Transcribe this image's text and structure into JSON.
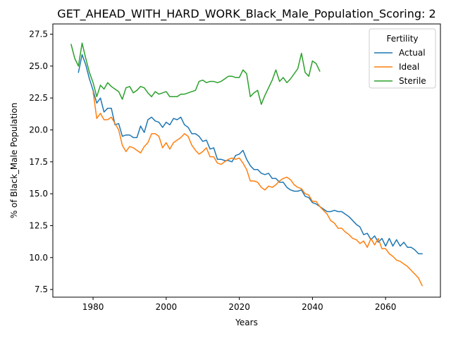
{
  "chart_data": {
    "type": "line",
    "title": "GET_AHEAD_WITH_HARD_WORK_Black_Male_Population_Scoring: 2",
    "xlabel": "Years",
    "ylabel": "% of Black_Male Population",
    "xlim": [
      1969,
      2075
    ],
    "ylim": [
      6.9,
      28.3
    ],
    "x_ticks": [
      1980,
      2000,
      2020,
      2040,
      2060
    ],
    "y_ticks": [
      7.5,
      10.0,
      12.5,
      15.0,
      17.5,
      20.0,
      22.5,
      25.0,
      27.5
    ],
    "legend": {
      "title": "Fertility",
      "position": "top-right"
    },
    "series": [
      {
        "name": "Actual",
        "color": "#1f77b4",
        "x": [
          1976,
          1977,
          1978,
          1979,
          1980,
          1981,
          1982,
          1983,
          1984,
          1985,
          1986,
          1987,
          1988,
          1989,
          1990,
          1991,
          1992,
          1993,
          1994,
          1995,
          1996,
          1997,
          1998,
          1999,
          2000,
          2001,
          2002,
          2003,
          2004,
          2005,
          2006,
          2007,
          2008,
          2009,
          2010,
          2011,
          2012,
          2013,
          2014,
          2015,
          2016,
          2017,
          2018,
          2019,
          2020,
          2021,
          2022,
          2023,
          2024,
          2025,
          2026,
          2027,
          2028,
          2029,
          2030,
          2031,
          2032,
          2033,
          2034,
          2035,
          2036,
          2037,
          2038,
          2039,
          2040,
          2041,
          2042,
          2043,
          2044,
          2045,
          2046,
          2047,
          2048,
          2049,
          2050,
          2051,
          2052,
          2053,
          2054,
          2055,
          2056,
          2057,
          2058,
          2059,
          2060,
          2061,
          2062,
          2063,
          2064,
          2065,
          2066,
          2067,
          2068,
          2069,
          2070
        ],
        "values": [
          24.5,
          25.9,
          25.1,
          24.0,
          23.1,
          22.1,
          22.5,
          21.4,
          21.7,
          21.7,
          20.4,
          20.5,
          19.5,
          19.6,
          19.6,
          19.4,
          19.4,
          20.3,
          19.8,
          20.8,
          21.0,
          20.7,
          20.6,
          20.2,
          20.6,
          20.4,
          20.9,
          20.8,
          21.0,
          20.4,
          20.2,
          19.7,
          19.7,
          19.5,
          19.1,
          19.2,
          18.5,
          18.6,
          17.7,
          17.7,
          17.6,
          17.6,
          17.5,
          18.0,
          18.1,
          18.4,
          17.7,
          17.2,
          16.9,
          16.9,
          16.6,
          16.5,
          16.6,
          16.2,
          16.2,
          15.9,
          15.9,
          15.5,
          15.3,
          15.2,
          15.2,
          15.3,
          14.8,
          14.7,
          14.3,
          14.2,
          14.0,
          13.8,
          13.6,
          13.6,
          13.7,
          13.6,
          13.6,
          13.4,
          13.2,
          12.9,
          12.6,
          12.4,
          11.8,
          11.9,
          11.4,
          11.7,
          11.2,
          11.5,
          10.9,
          11.5,
          10.9,
          11.4,
          10.9,
          11.2,
          10.8,
          10.8,
          10.6,
          10.3,
          10.3
        ]
      },
      {
        "name": "Ideal",
        "color": "#ff7f0e",
        "x": [
          1980,
          1981,
          1982,
          1983,
          1984,
          1985,
          1986,
          1987,
          1988,
          1989,
          1990,
          1991,
          1992,
          1993,
          1994,
          1995,
          1996,
          1997,
          1998,
          1999,
          2000,
          2001,
          2002,
          2003,
          2004,
          2005,
          2006,
          2007,
          2008,
          2009,
          2010,
          2011,
          2012,
          2013,
          2014,
          2015,
          2016,
          2017,
          2018,
          2019,
          2020,
          2021,
          2022,
          2023,
          2024,
          2025,
          2026,
          2027,
          2028,
          2029,
          2030,
          2031,
          2032,
          2033,
          2034,
          2035,
          2036,
          2037,
          2038,
          2039,
          2040,
          2041,
          2042,
          2043,
          2044,
          2045,
          2046,
          2047,
          2048,
          2049,
          2050,
          2051,
          2052,
          2053,
          2054,
          2055,
          2056,
          2057,
          2058,
          2059,
          2060,
          2061,
          2062,
          2063,
          2064,
          2065,
          2066,
          2067,
          2068,
          2069,
          2070
        ],
        "values": [
          23.0,
          20.9,
          21.3,
          20.8,
          20.8,
          21.0,
          20.5,
          20.0,
          18.8,
          18.3,
          18.7,
          18.6,
          18.4,
          18.2,
          18.7,
          19.0,
          19.7,
          19.7,
          19.5,
          18.6,
          19.0,
          18.5,
          19.0,
          19.2,
          19.4,
          19.7,
          19.5,
          18.8,
          18.4,
          18.1,
          18.3,
          18.6,
          17.9,
          17.9,
          17.4,
          17.3,
          17.5,
          17.7,
          17.8,
          17.7,
          17.8,
          17.4,
          16.9,
          16.0,
          16.0,
          15.9,
          15.5,
          15.3,
          15.6,
          15.5,
          15.7,
          16.0,
          16.2,
          16.3,
          16.1,
          15.7,
          15.5,
          15.4,
          15.0,
          14.9,
          14.4,
          14.4,
          14.0,
          13.7,
          13.4,
          12.9,
          12.7,
          12.3,
          12.3,
          12.0,
          11.8,
          11.5,
          11.4,
          11.1,
          11.3,
          10.8,
          11.5,
          11.0,
          11.5,
          10.7,
          10.7,
          10.3,
          10.1,
          9.8,
          9.7,
          9.5,
          9.3,
          9.0,
          8.7,
          8.4,
          7.8
        ]
      },
      {
        "name": "Sterile",
        "color": "#2ca02c",
        "x": [
          1974,
          1975,
          1976,
          1977,
          1978,
          1979,
          1980,
          1981,
          1982,
          1983,
          1984,
          1985,
          1986,
          1987,
          1988,
          1989,
          1990,
          1991,
          1992,
          1993,
          1994,
          1995,
          1996,
          1997,
          1998,
          1999,
          2000,
          2001,
          2002,
          2003,
          2004,
          2005,
          2006,
          2007,
          2008,
          2009,
          2010,
          2011,
          2012,
          2013,
          2014,
          2015,
          2016,
          2017,
          2018,
          2019,
          2020,
          2021,
          2022,
          2023,
          2024,
          2025,
          2026,
          2027,
          2028,
          2029,
          2030,
          2031,
          2032,
          2033,
          2034,
          2035,
          2036,
          2037,
          2038,
          2039,
          2040,
          2041,
          2042
        ],
        "values": [
          26.7,
          25.6,
          25.0,
          26.8,
          25.6,
          24.5,
          23.7,
          22.6,
          23.5,
          23.2,
          23.7,
          23.4,
          23.2,
          23.0,
          22.4,
          23.3,
          23.4,
          22.9,
          23.1,
          23.4,
          23.3,
          22.9,
          22.6,
          23.0,
          22.8,
          22.9,
          23.0,
          22.6,
          22.6,
          22.6,
          22.8,
          22.8,
          22.9,
          23.0,
          23.1,
          23.8,
          23.9,
          23.7,
          23.8,
          23.8,
          23.7,
          23.8,
          24.0,
          24.2,
          24.2,
          24.1,
          24.1,
          24.7,
          24.4,
          22.6,
          22.9,
          23.1,
          22.0,
          22.7,
          23.3,
          23.9,
          24.7,
          23.8,
          24.1,
          23.7,
          24.0,
          24.4,
          24.8,
          26.0,
          24.5,
          24.2,
          25.4,
          25.2,
          24.6
        ]
      }
    ]
  }
}
